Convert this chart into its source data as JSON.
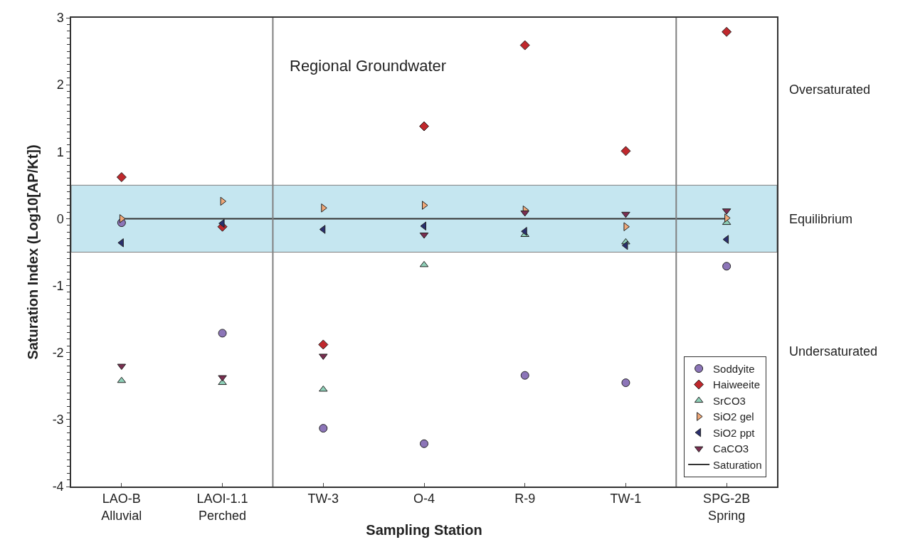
{
  "chart_data": {
    "type": "scatter",
    "xlabel": "Sampling Station",
    "ylabel": "Saturation Index (Log10[AP/Kt])",
    "categories": [
      "LAO-B\nAlluvial",
      "LAOI-1.1\nPerched",
      "TW-3",
      "O-4",
      "R-9",
      "TW-1",
      "SPG-2B\nSpring"
    ],
    "ylim": [
      -4,
      3
    ],
    "yticks": [
      -4,
      -3,
      -2,
      -1,
      0,
      1,
      2,
      3
    ],
    "grid": false,
    "legend": "bottom right",
    "series": [
      {
        "name": "Soddyite",
        "color": "#8c75b8",
        "marker": "circle",
        "values": [
          -0.06,
          -1.71,
          -3.13,
          -3.36,
          -2.34,
          -2.45,
          -0.71
        ]
      },
      {
        "name": "Haiweeite",
        "color": "#c0282d",
        "marker": "diamond",
        "values": [
          0.62,
          -0.12,
          -1.88,
          1.38,
          2.59,
          1.01,
          2.79
        ]
      },
      {
        "name": "SrCO3",
        "color": "#8fd0b8",
        "marker": "triangle-up",
        "values": [
          -2.42,
          -2.45,
          -2.55,
          -0.69,
          -0.24,
          -0.35,
          -0.06
        ]
      },
      {
        "name": "SiO2 gel",
        "color": "#f0a878",
        "marker": "triangle-right",
        "values": [
          0.0,
          0.26,
          0.16,
          0.2,
          0.13,
          -0.12,
          0.01
        ]
      },
      {
        "name": "SiO2 ppt",
        "color": "#2a2f6e",
        "marker": "triangle-left",
        "values": [
          -0.36,
          -0.07,
          -0.16,
          -0.11,
          -0.19,
          -0.4,
          -0.31
        ]
      },
      {
        "name": "CaCO3",
        "color": "#7a2e50",
        "marker": "triangle-down",
        "values": [
          -2.2,
          -2.37,
          -2.05,
          -0.24,
          0.09,
          0.07,
          0.12
        ]
      },
      {
        "name": "Saturation",
        "type": "line",
        "color": "#333333",
        "marker": "none",
        "values": [
          0,
          0,
          0,
          0,
          0,
          0,
          0
        ]
      }
    ],
    "bands": [
      {
        "axis": "y",
        "from": -0.5,
        "to": 0.5,
        "color": "#c5e6f0"
      }
    ],
    "annotations": [
      "Regional Groundwater",
      "Oversaturated",
      "Equilibrium",
      "Undersaturated"
    ]
  }
}
